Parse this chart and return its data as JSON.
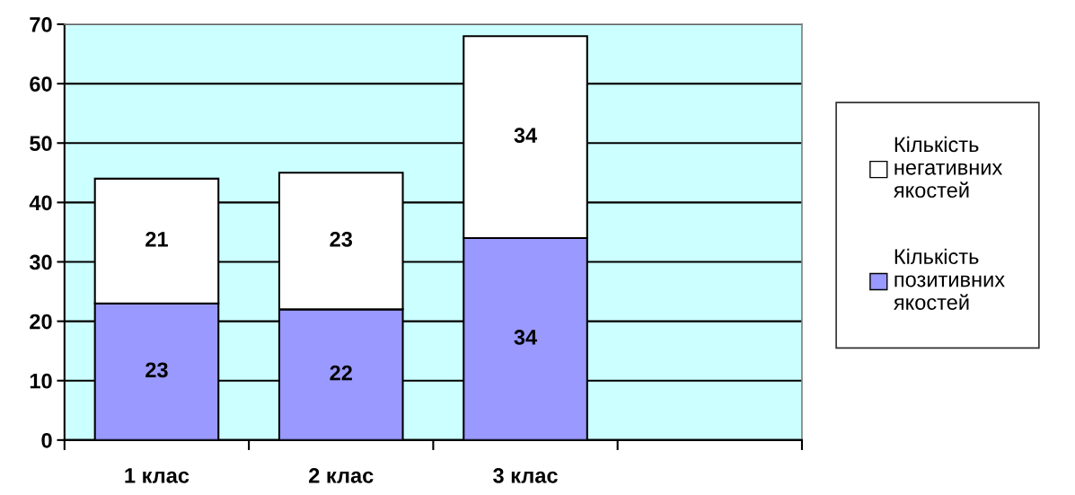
{
  "chart_data": {
    "type": "bar",
    "stacked": true,
    "categories": [
      "1 клас",
      "2 клас",
      "3 клас",
      null
    ],
    "series": [
      {
        "name": "Кількість позитивних якостей",
        "color": "#9999ff",
        "values": [
          23,
          22,
          34,
          null
        ]
      },
      {
        "name": "Кількість негативних якостей",
        "color": "#ffffff",
        "values": [
          21,
          23,
          34,
          null
        ]
      }
    ],
    "ylim": [
      0,
      70
    ],
    "yticks": [
      0,
      10,
      20,
      30,
      40,
      50,
      60,
      70
    ],
    "grid": "y",
    "legend": "right",
    "data_labels": true
  }
}
